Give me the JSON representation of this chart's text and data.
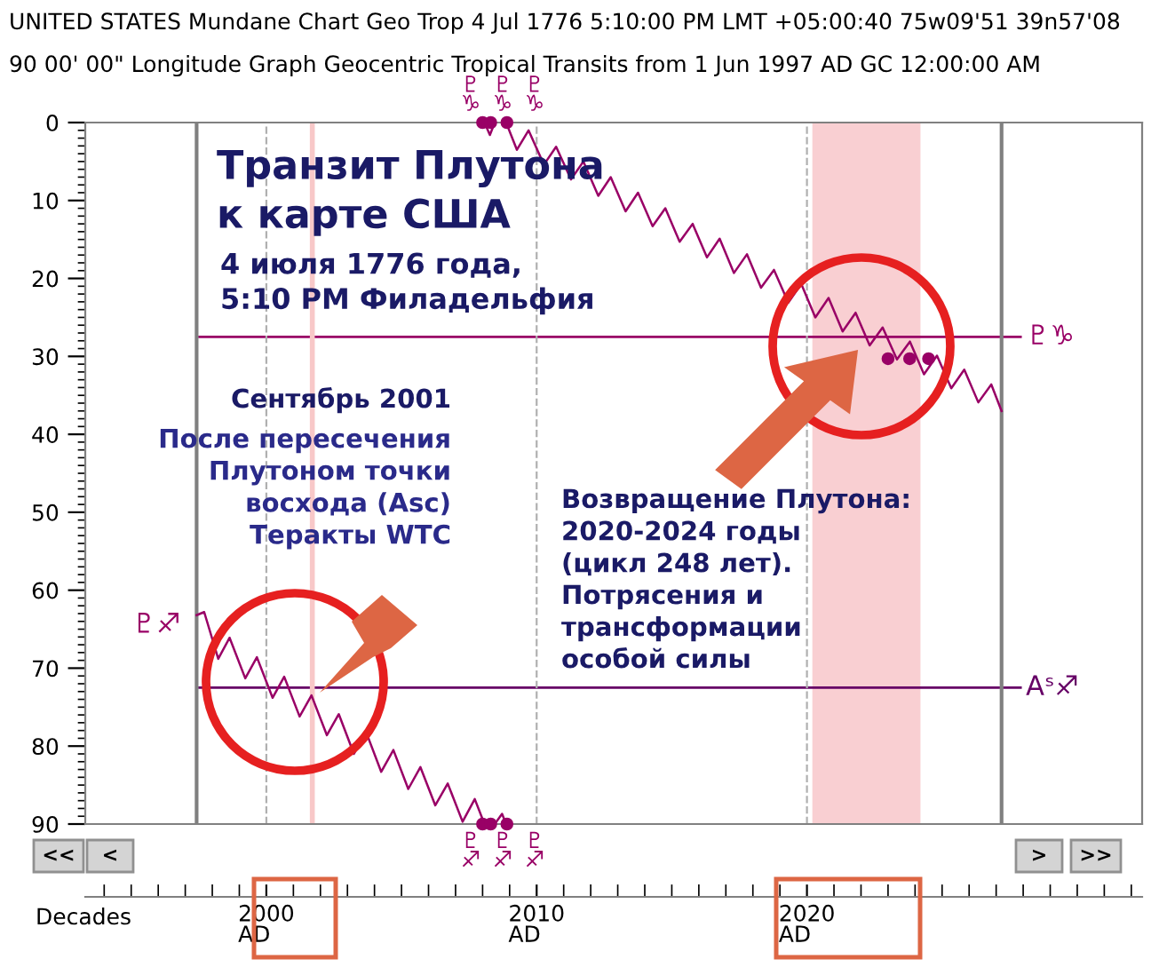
{
  "chart_data": {
    "type": "line",
    "title": "UNITED STATES Mundane Chart Geo Trop 4 Jul 1776 5:10:00 PM LMT +05:00:40 75w09'51 39n57'08",
    "subtitle": "90 00' 00\" Longitude Graph Geocentric Tropical Transits from 1 Jun 1997 AD GC 12:00:00 AM",
    "xlabel": "Decades",
    "xlim": [
      1993.3,
      2032.4
    ],
    "xticks": [
      {
        "value": 2000,
        "label": "2000\nAD"
      },
      {
        "value": 2010,
        "label": "2010\nAD"
      },
      {
        "value": 2020,
        "label": "2020\nAD"
      }
    ],
    "ylim": [
      90,
      0
    ],
    "yticks": [
      0,
      10,
      20,
      30,
      40,
      50,
      60,
      70,
      80,
      90
    ],
    "grid": "x",
    "line_style": "solid",
    "series": [
      {
        "color": "#990066",
        "x": [
          1997.42,
          1997.7,
          1998.22,
          1998.64,
          1999.22,
          1999.65,
          2000.23,
          2000.66,
          2001.23,
          2001.67,
          2002.24,
          2002.68,
          2003.24,
          2003.69,
          2004.25,
          2004.7,
          2005.25,
          2005.7,
          2006.25,
          2006.71,
          2007.26,
          2007.71,
          2008.07,
          2008.2,
          2008.45,
          2008.72,
          2008.87
        ],
        "values": [
          63.2,
          62.8,
          68.8,
          66.1,
          71.3,
          68.6,
          73.8,
          71.1,
          76.2,
          73.5,
          78.6,
          75.9,
          81.0,
          78.2,
          83.3,
          80.5,
          85.5,
          82.7,
          87.6,
          84.8,
          89.7,
          86.8,
          90,
          null,
          90,
          88.7,
          90
        ]
      },
      {
        "color": "#990066",
        "x": [
          2008.07,
          2008.27,
          2008.45,
          2008.6,
          2008.87,
          2009.27,
          2009.7,
          2010.27,
          2010.72,
          2011.27,
          2011.73,
          2012.28,
          2012.74,
          2013.29,
          2013.75,
          2014.29,
          2014.76,
          2015.29,
          2015.77,
          2016.3,
          2016.77,
          2017.3,
          2017.78,
          2018.3,
          2018.78,
          2019.31,
          2019.79,
          2020.31,
          2020.8,
          2021.32,
          2021.8,
          2022.32,
          2022.8,
          2023.33,
          2023.81,
          2024.33,
          2024.81,
          2025.34,
          2025.82,
          2026.34,
          2026.82,
          2027.2
        ],
        "values": [
          0,
          1.6,
          0,
          null,
          0,
          3.5,
          1.0,
          5.4,
          3.1,
          7.3,
          5.0,
          9.4,
          7.0,
          11.4,
          9.0,
          13.3,
          11.0,
          15.3,
          13.0,
          17.3,
          14.9,
          19.3,
          16.9,
          21.2,
          18.9,
          23.1,
          20.7,
          25.0,
          22.5,
          26.8,
          24.4,
          28.6,
          26.3,
          30.4,
          28.1,
          32.3,
          29.9,
          34.1,
          31.7,
          35.9,
          33.6,
          37.0
        ]
      },
      {
        "type": "scatter",
        "marker": "circle",
        "color": "#990066",
        "x": [
          2008.0,
          2008.3,
          2008.9,
          2008.0,
          2008.3,
          2008.9,
          2023.0,
          2023.8,
          2024.5
        ],
        "values": [
          0,
          0,
          0,
          90,
          90,
          90,
          30.3,
          30.3,
          30.3
        ]
      }
    ],
    "ref_lines": [
      {
        "axis": "y",
        "value": 27.5,
        "label": "♇♑",
        "color": "#990066"
      },
      {
        "axis": "y",
        "value": 72.5,
        "label": "Aˢ♐",
        "color": "#660066"
      },
      {
        "axis": "x",
        "value": 1997.42,
        "color": "#808080"
      },
      {
        "axis": "x",
        "value": 2027.2,
        "color": "#808080"
      },
      {
        "axis": "x",
        "value": 2001.7,
        "color": "#f8c8c8"
      }
    ],
    "bands": [
      {
        "axis": "x",
        "from": 2020.2,
        "to": 2024.2,
        "color": "#f9cfd2"
      }
    ],
    "annotations": [
      "Транзит Плутона\nк карте США",
      "4 июля 1776 года,\n5:10 PM Филадельфия",
      "Сентябрь 2001",
      "После пересечения\nПлутоном точки\nвосхода (Asc)\nТеракты WTC",
      "Возвращение Плутона:\n2020-2024 годы\n(цикл 248 лет).\nПотрясения и\nтрансформации\nособой силы",
      "♇\n♑",
      "♇\n♑",
      "♇\n♑",
      "♇\n♐",
      "♇\n♐",
      "♇\n♐",
      "♇♐",
      "<<",
      "<",
      ">",
      ">>"
    ]
  }
}
